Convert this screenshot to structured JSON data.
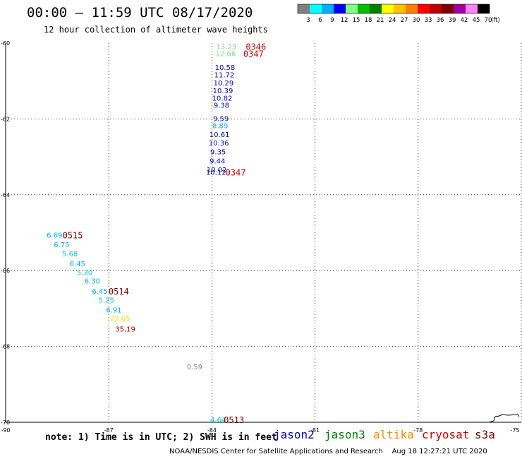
{
  "header": {
    "title": "00:00 – 11:59 UTC 08/17/2020",
    "subtitle": "12 hour collection of altimeter wave heights"
  },
  "legend": {
    "unit": "(ft)",
    "ticks": [
      "3",
      "6",
      "9",
      "12",
      "15",
      "18",
      "21",
      "24",
      "27",
      "30",
      "33",
      "36",
      "39",
      "42",
      "45",
      "70"
    ],
    "colors": [
      "#808080",
      "#00ffff",
      "#00b0ff",
      "#0000ff",
      "#80ff80",
      "#00c000",
      "#008000",
      "#ffff00",
      "#ffc000",
      "#ff8000",
      "#ff0000",
      "#c00000",
      "#800000",
      "#a000a0",
      "#ff80ff",
      "#000000"
    ]
  },
  "axes": {
    "lat_labels": [
      "-60",
      "-62",
      "-64",
      "-66",
      "-68",
      "-70"
    ],
    "lon_labels": [
      "-90",
      "-87",
      "-84",
      "-81",
      "-78",
      "-75"
    ]
  },
  "footer": {
    "note": "note: 1) Time is in UTC; 2) SWH is in feet",
    "credit": "NOAA/NESDIS Center for Satellite Applications and Research    Aug 18 12:27:21 UTC 2020"
  },
  "satellites": [
    {
      "name": "jason2",
      "color": "#0000cc"
    },
    {
      "name": "jason3",
      "color": "#008000"
    },
    {
      "name": "altika",
      "color": "#ff8c00"
    },
    {
      "name": "cryosat",
      "color": "#cc0000"
    },
    {
      "name": "s3a",
      "color": "#800000"
    }
  ],
  "chart_data": {
    "type": "scatter",
    "title": "00:00 – 11:59 UTC 08/17/2020",
    "subtitle": "12 hour collection of altimeter wave heights",
    "xlabel": "",
    "ylabel": "",
    "xlim": [
      -90,
      -75
    ],
    "ylim": [
      -70,
      -60
    ],
    "grid": true,
    "x_ticks": [
      -90,
      -87,
      -84,
      -81,
      -78,
      -75
    ],
    "y_ticks": [
      -60,
      -62,
      -64,
      -66,
      -68,
      -70
    ],
    "points": [
      {
        "lon": -83.58,
        "lat": -60.08,
        "label": "13.23",
        "color": "#80e080"
      },
      {
        "lon": -83.6,
        "lat": -60.27,
        "label": "12.66",
        "color": "#80e080"
      },
      {
        "lon": -83.62,
        "lat": -60.63,
        "label": "10.58",
        "color": "#0000cc"
      },
      {
        "lon": -83.64,
        "lat": -60.83,
        "label": "11.72",
        "color": "#0000cc"
      },
      {
        "lon": -83.66,
        "lat": -61.04,
        "label": "10.29",
        "color": "#0000cc"
      },
      {
        "lon": -83.68,
        "lat": -61.25,
        "label": "10.39",
        "color": "#0000cc"
      },
      {
        "lon": -83.7,
        "lat": -61.44,
        "label": "10.82",
        "color": "#0000cc"
      },
      {
        "lon": -83.72,
        "lat": -61.63,
        "label": "9.38",
        "color": "#0000cc"
      },
      {
        "lon": -83.74,
        "lat": -61.98,
        "label": "9.59",
        "color": "#0000cc"
      },
      {
        "lon": -83.76,
        "lat": -62.17,
        "label": "8.89",
        "color": "#00b0ff"
      },
      {
        "lon": -83.78,
        "lat": -62.4,
        "label": "10.61",
        "color": "#0000cc"
      },
      {
        "lon": -83.8,
        "lat": -62.63,
        "label": "10.36",
        "color": "#0000cc"
      },
      {
        "lon": -83.82,
        "lat": -62.86,
        "label": "9.35",
        "color": "#0000cc"
      },
      {
        "lon": -83.84,
        "lat": -63.1,
        "label": "9.44",
        "color": "#0000cc"
      },
      {
        "lon": -83.86,
        "lat": -63.33,
        "label": "10.02",
        "color": "#0000cc"
      },
      {
        "lon": -83.88,
        "lat": -63.4,
        "label": "10.12",
        "color": "#0000cc"
      },
      {
        "lon": -88.58,
        "lat": -65.06,
        "label": "6.69",
        "color": "#00b0ff"
      },
      {
        "lon": -88.37,
        "lat": -65.31,
        "label": "6.75",
        "color": "#00b0ff"
      },
      {
        "lon": -88.13,
        "lat": -65.55,
        "label": "5.68",
        "color": "#00c8e8"
      },
      {
        "lon": -87.91,
        "lat": -65.81,
        "label": "6.45",
        "color": "#00b0ff"
      },
      {
        "lon": -87.7,
        "lat": -66.04,
        "label": "5.30",
        "color": "#00c8e8"
      },
      {
        "lon": -87.48,
        "lat": -66.27,
        "label": "6.30",
        "color": "#00b0ff"
      },
      {
        "lon": -87.26,
        "lat": -66.54,
        "label": "6.45",
        "color": "#00b0ff"
      },
      {
        "lon": -87.07,
        "lat": -66.77,
        "label": "5.25",
        "color": "#00c8e8"
      },
      {
        "lon": -86.85,
        "lat": -67.03,
        "label": "6.91",
        "color": "#00b0ff"
      },
      {
        "lon": -86.67,
        "lat": -67.25,
        "label": "22.65",
        "color": "#ffd700"
      },
      {
        "lon": -86.52,
        "lat": -67.53,
        "label": "35.19",
        "color": "#c00000"
      },
      {
        "lon": -84.5,
        "lat": -68.53,
        "label": "0.59",
        "color": "#808080"
      },
      {
        "lon": -83.82,
        "lat": -69.93,
        "label": "4.64",
        "color": "#00c8e8"
      }
    ],
    "pass_times": [
      {
        "lon": -82.72,
        "lat": -60.08,
        "label": "0346",
        "color": "#cc0000"
      },
      {
        "lon": -82.79,
        "lat": -60.27,
        "label": "0347",
        "color": "#cc0000"
      },
      {
        "lon": -83.31,
        "lat": -63.4,
        "label": "0347",
        "color": "#cc0000"
      },
      {
        "lon": -88.05,
        "lat": -65.06,
        "label": "0515",
        "color": "#800000"
      },
      {
        "lon": -86.71,
        "lat": -66.54,
        "label": "0514",
        "color": "#800000"
      },
      {
        "lon": -83.36,
        "lat": -69.93,
        "label": "0513",
        "color": "#800000"
      }
    ]
  }
}
